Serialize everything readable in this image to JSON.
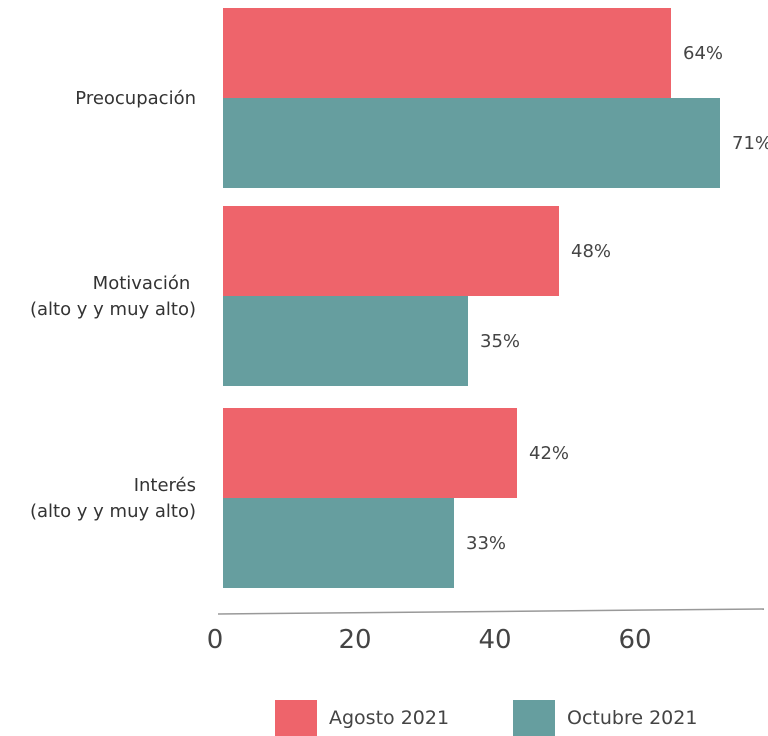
{
  "chart_data": {
    "type": "bar",
    "orientation": "horizontal",
    "categories": [
      [
        "Preocupación"
      ],
      [
        "Motivación ",
        "(alto y y muy alto)"
      ],
      [
        "Interés",
        "(alto y y muy alto)"
      ]
    ],
    "series": [
      {
        "name": "Agosto 2021",
        "values": [
          64,
          48,
          42
        ],
        "labels": [
          "64%",
          "48%",
          "42%"
        ],
        "color": "#EE646B"
      },
      {
        "name": "Octubre 2021",
        "values": [
          71,
          35,
          33
        ],
        "labels": [
          "71%",
          "35%",
          "33%"
        ],
        "color": "#669E9F"
      }
    ],
    "xticks": [
      "0",
      "20",
      "40",
      "60"
    ],
    "xlim": [
      0,
      80
    ],
    "grid": false,
    "legend_position": "bottom"
  }
}
